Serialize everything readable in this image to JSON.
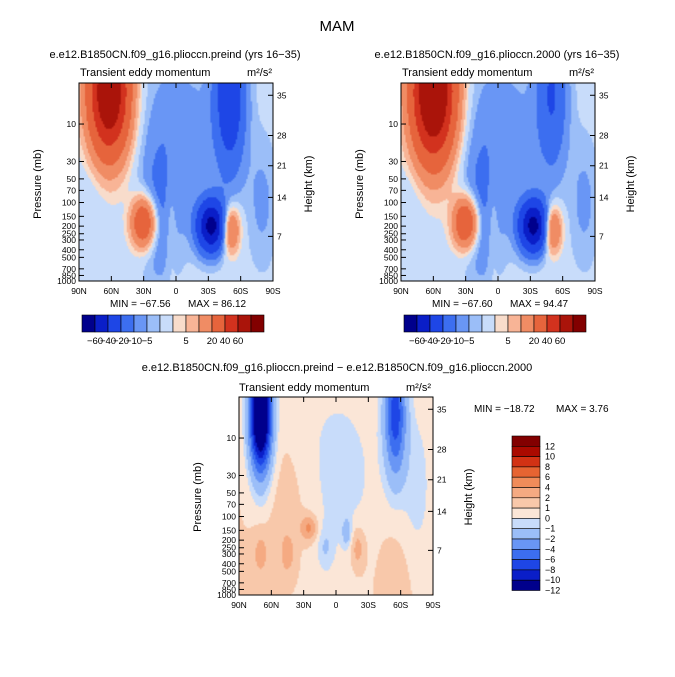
{
  "figure_title": "MAM",
  "colors": {
    "abs_scale": [
      "#00008c",
      "#0a1ec8",
      "#1e46e6",
      "#3c6ef0",
      "#6996f5",
      "#9bbef8",
      "#c8dcfa",
      "#f8dccb",
      "#f8b496",
      "#f08c64",
      "#e6643c",
      "#d2321e",
      "#aa140a",
      "#820000"
    ],
    "diff_scale": [
      "#00008c",
      "#0a1ec8",
      "#1e46e6",
      "#3c6ef0",
      "#6996f5",
      "#9bbef8",
      "#c8dcfa",
      "#fbe6d7",
      "#f8c8aa",
      "#f5aa82",
      "#f08c5a",
      "#e66432",
      "#d23214",
      "#aa0a00",
      "#820000"
    ]
  },
  "chart_data": [
    {
      "type": "heatmap",
      "title": "e.e12.B1850CN.f09_g16.plioccn.preind (yrs 16−35)",
      "subtitle_left": "Transient eddy momentum",
      "units": "m²/s²",
      "xlabel": "",
      "ylabel": "Pressure (mb)",
      "ylabel_right": "Height (km)",
      "x_ticks": [
        "90N",
        "60N",
        "30N",
        "0",
        "30S",
        "60S",
        "90S"
      ],
      "xlim": [
        90,
        -90
      ],
      "y_ticks": [
        "10",
        "30",
        "50",
        "70",
        "100",
        "150",
        "200",
        "250",
        "300",
        "400",
        "500",
        "700",
        "850",
        "1000"
      ],
      "y_tick_values": [
        10,
        30,
        50,
        70,
        100,
        150,
        200,
        250,
        300,
        400,
        500,
        700,
        850,
        1000
      ],
      "ylim": [
        1000,
        3
      ],
      "y_scale": "log",
      "right_ticks": [
        "35",
        "28",
        "21",
        "14",
        "7"
      ],
      "right_tick_pressures": [
        4.3,
        14,
        34,
        86,
        270
      ],
      "min_label": "MIN = −67.56",
      "max_label": "MAX = 86.12",
      "min": -67.56,
      "max": 86.12,
      "features": [
        {
          "lat": 62,
          "p": 4,
          "value": 86,
          "dlat": 13,
          "dlogp": 0.55
        },
        {
          "lat": 30,
          "p": 180,
          "value": 40,
          "dlat": 8,
          "dlogp": 0.22
        },
        {
          "lat": -50,
          "p": 220,
          "value": 30,
          "dlat": 6,
          "dlogp": 0.2
        },
        {
          "lat": 5,
          "p": 150,
          "value": 6,
          "dlat": 4,
          "dlogp": 0.5
        },
        {
          "lat": 80,
          "p": 400,
          "value": 4,
          "dlat": 8,
          "dlogp": 0.5
        },
        {
          "lat": -33,
          "p": 200,
          "value": -67,
          "dlat": 9,
          "dlogp": 0.22
        },
        {
          "lat": -50,
          "p": 4,
          "value": -32,
          "dlat": 10,
          "dlogp": 0.7
        },
        {
          "lat": 15,
          "p": 150,
          "value": -10,
          "dlat": 12,
          "dlogp": 0.6
        },
        {
          "lat": 0,
          "p": 15,
          "value": -8,
          "dlat": 28,
          "dlogp": 0.8
        },
        {
          "lat": 80,
          "p": 150,
          "value": -5,
          "dlat": 10,
          "dlogp": 0.5
        },
        {
          "lat": -80,
          "p": 100,
          "value": -6,
          "dlat": 10,
          "dlogp": 0.6
        }
      ]
    },
    {
      "type": "heatmap",
      "title": "e.e12.B1850CN.f09_g16.plioccn.2000 (yrs 16−35)",
      "subtitle_left": "Transient eddy momentum",
      "units": "m²/s²",
      "xlabel": "",
      "ylabel": "Pressure (mb)",
      "ylabel_right": "Height (km)",
      "x_ticks": [
        "90N",
        "60N",
        "30N",
        "0",
        "30S",
        "60S",
        "90S"
      ],
      "xlim": [
        90,
        -90
      ],
      "y_ticks": [
        "10",
        "30",
        "50",
        "70",
        "100",
        "150",
        "200",
        "250",
        "300",
        "400",
        "500",
        "700",
        "850",
        "1000"
      ],
      "y_tick_values": [
        10,
        30,
        50,
        70,
        100,
        150,
        200,
        250,
        300,
        400,
        500,
        700,
        850,
        1000
      ],
      "ylim": [
        1000,
        3
      ],
      "y_scale": "log",
      "right_ticks": [
        "35",
        "28",
        "21",
        "14",
        "7"
      ],
      "right_tick_pressures": [
        4.3,
        14,
        34,
        86,
        270
      ],
      "min_label": "MIN = −67.60",
      "max_label": "MAX = 94.47",
      "min": -67.6,
      "max": 94.47,
      "features": [
        {
          "lat": 60,
          "p": 4,
          "value": 94,
          "dlat": 14,
          "dlogp": 0.6
        },
        {
          "lat": 30,
          "p": 180,
          "value": 42,
          "dlat": 8,
          "dlogp": 0.22
        },
        {
          "lat": -50,
          "p": 220,
          "value": 30,
          "dlat": 6,
          "dlogp": 0.2
        },
        {
          "lat": 5,
          "p": 150,
          "value": 6,
          "dlat": 4,
          "dlogp": 0.5
        },
        {
          "lat": 80,
          "p": 400,
          "value": 4,
          "dlat": 8,
          "dlogp": 0.5
        },
        {
          "lat": -33,
          "p": 200,
          "value": -67,
          "dlat": 9,
          "dlogp": 0.22
        },
        {
          "lat": -50,
          "p": 4,
          "value": -20,
          "dlat": 10,
          "dlogp": 0.7
        },
        {
          "lat": 15,
          "p": 150,
          "value": -10,
          "dlat": 12,
          "dlogp": 0.6
        },
        {
          "lat": 0,
          "p": 15,
          "value": -8,
          "dlat": 28,
          "dlogp": 0.8
        },
        {
          "lat": 80,
          "p": 150,
          "value": -5,
          "dlat": 10,
          "dlogp": 0.5
        },
        {
          "lat": -80,
          "p": 100,
          "value": -6,
          "dlat": 10,
          "dlogp": 0.6
        }
      ]
    },
    {
      "type": "heatmap",
      "title": "e.e12.B1850CN.f09_g16.plioccn.preind − e.e12.B1850CN.f09_g16.plioccn.2000",
      "subtitle_left": "Transient eddy momentum",
      "units": "m²/s²",
      "xlabel": "",
      "ylabel": "Pressure (mb)",
      "ylabel_right": "Height (km)",
      "x_ticks": [
        "90N",
        "60N",
        "30N",
        "0",
        "30S",
        "60S",
        "90S"
      ],
      "xlim": [
        90,
        -90
      ],
      "y_ticks": [
        "10",
        "30",
        "50",
        "70",
        "100",
        "150",
        "200",
        "250",
        "300",
        "400",
        "500",
        "700",
        "850",
        "1000"
      ],
      "y_tick_values": [
        10,
        30,
        50,
        70,
        100,
        150,
        200,
        250,
        300,
        400,
        500,
        700,
        850,
        1000
      ],
      "ylim": [
        1000,
        3
      ],
      "y_scale": "log",
      "right_ticks": [
        "35",
        "28",
        "21",
        "14",
        "7"
      ],
      "right_tick_pressures": [
        4.3,
        14,
        34,
        86,
        270
      ],
      "min_label": "MIN = −18.72",
      "max_label": "MAX =    3.76",
      "min": -18.72,
      "max": 3.76,
      "features": [
        {
          "lat": 70,
          "p": 5,
          "value": -18.7,
          "dlat": 7,
          "dlogp": 0.5
        },
        {
          "lat": -55,
          "p": 5,
          "value": -9,
          "dlat": 7,
          "dlogp": 0.55
        },
        {
          "lat": 0,
          "p": 30,
          "value": -1.5,
          "dlat": 30,
          "dlogp": 0.9
        },
        {
          "lat": -75,
          "p": 50,
          "value": -1.5,
          "dlat": 10,
          "dlogp": 0.8
        },
        {
          "lat": -10,
          "p": 160,
          "value": -2.5,
          "dlat": 3,
          "dlogp": 0.12
        },
        {
          "lat": 10,
          "p": 250,
          "value": -1.5,
          "dlat": 5,
          "dlogp": 0.2
        },
        {
          "lat": 25,
          "p": 140,
          "value": 2.5,
          "dlat": 6,
          "dlogp": 0.12
        },
        {
          "lat": 45,
          "p": 300,
          "value": 1.5,
          "dlat": 5,
          "dlogp": 0.2
        },
        {
          "lat": 70,
          "p": 300,
          "value": 1.5,
          "dlat": 5,
          "dlogp": 0.2
        },
        {
          "lat": -20,
          "p": 250,
          "value": 2,
          "dlat": 5,
          "dlogp": 0.2
        },
        {
          "lat": 40,
          "p": 60,
          "value": 0.8,
          "dlat": 20,
          "dlogp": 0.6
        },
        {
          "lat": -60,
          "p": 400,
          "value": 0.6,
          "dlat": 20,
          "dlogp": 0.5
        }
      ]
    }
  ],
  "colorbar_abs": {
    "orientation": "horizontal",
    "levels": [
      -60,
      -40,
      -20,
      -10,
      -5,
      -2,
      2,
      5,
      10,
      20,
      40,
      60
    ],
    "labels": [
      "−60",
      "−40",
      "−20",
      "−10",
      "−5",
      "5",
      "20",
      "40",
      "60"
    ],
    "label_after_box": [
      1,
      2,
      3,
      4,
      5,
      8,
      10,
      11,
      12
    ]
  },
  "colorbar_diff": {
    "orientation": "vertical",
    "levels": [
      12,
      10,
      8,
      6,
      4,
      2,
      1,
      0,
      -1,
      -2,
      -4,
      -6,
      -8,
      -10,
      -12
    ],
    "labels": [
      "12",
      "10",
      "8",
      "6",
      "4",
      "2",
      "1",
      "0",
      "−1",
      "−2",
      "−4",
      "−6",
      "−8",
      "−10",
      "−12"
    ]
  }
}
